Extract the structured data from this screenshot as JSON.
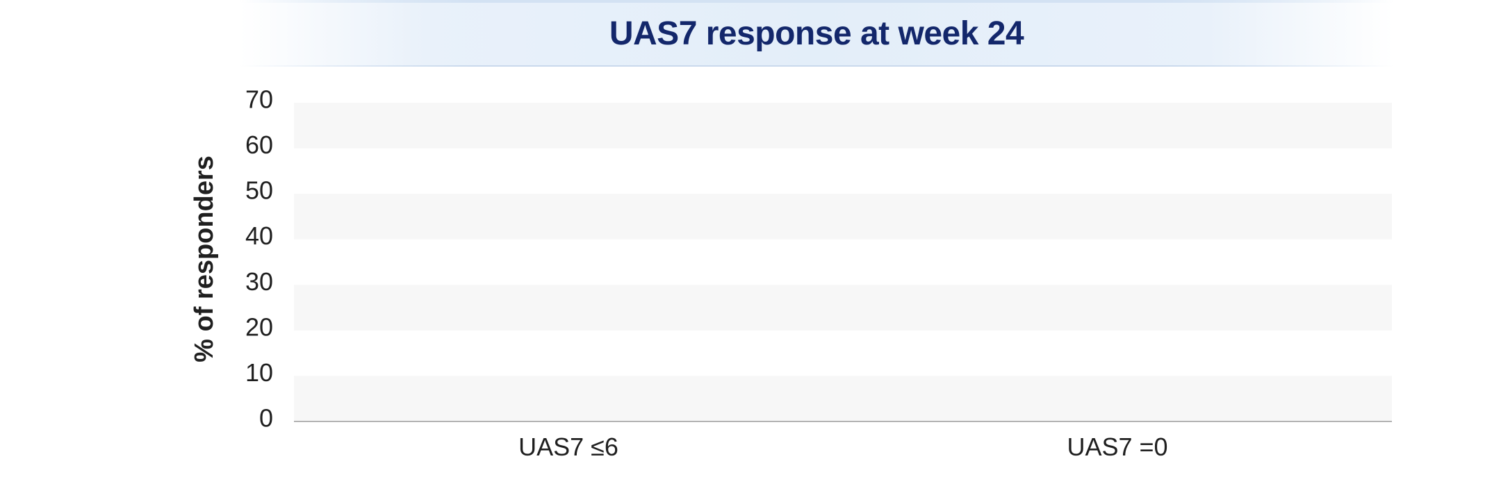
{
  "chart_data": {
    "type": "bar",
    "title": "UAS7 response at week 24",
    "xlabel": "",
    "ylabel": "% of responders",
    "categories": [
      "UAS7 ≤6",
      "UAS7 =0"
    ],
    "series": [],
    "ylim": [
      0,
      70
    ],
    "yticks": [
      0,
      10,
      20,
      30,
      40,
      50,
      60,
      70
    ],
    "grid": "alternating horizontal bands",
    "legend": "none"
  },
  "colors": {
    "title": "#13276b",
    "title_band": "#e3eef9",
    "band": "#f7f7f7",
    "axis_line": "#b3b3b3",
    "text": "#1f1f1f"
  }
}
